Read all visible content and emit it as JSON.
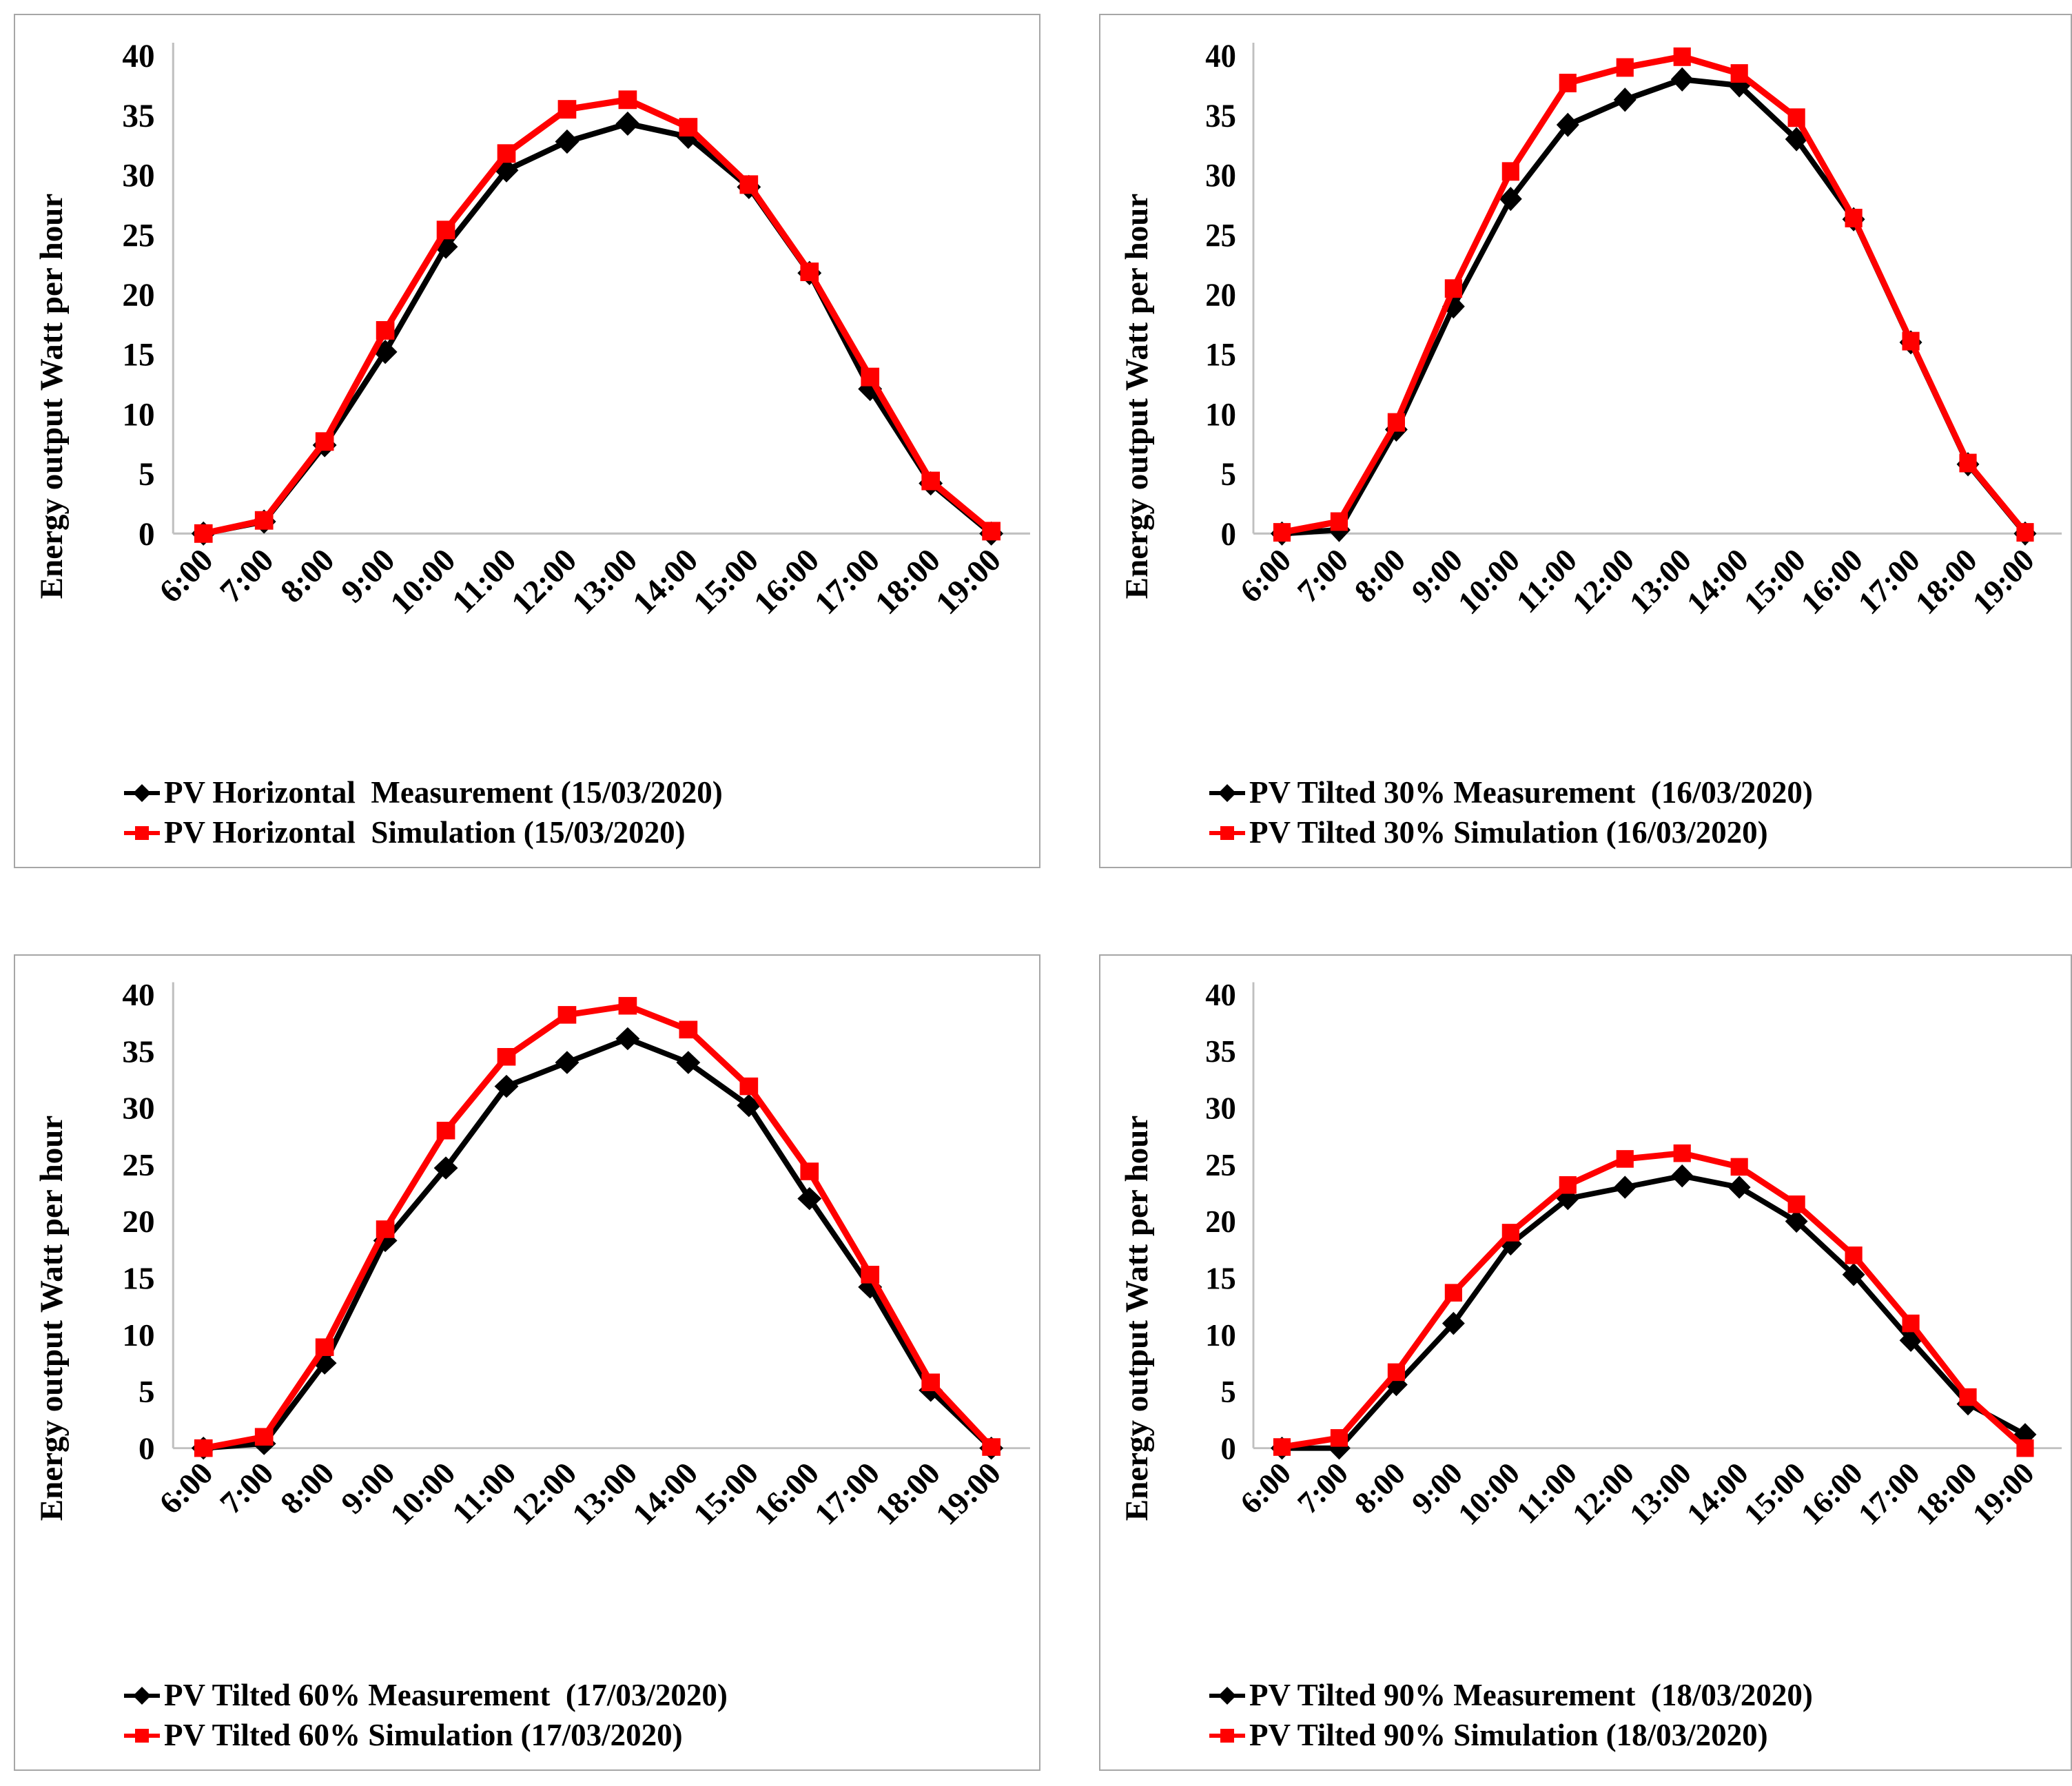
{
  "page": {
    "background": "#ffffff"
  },
  "colors": {
    "measurement": "#000000",
    "simulation": "#ff0000",
    "axis": "#c0c0c0",
    "panel_border": "#a6a6a6"
  },
  "chart_data": [
    {
      "type": "line",
      "ylabel": "Energy output Watt per hour",
      "xlabel": "",
      "ylim": [
        0,
        40
      ],
      "yticks": [
        0,
        5,
        10,
        15,
        20,
        25,
        30,
        35,
        40
      ],
      "grid": false,
      "legend_position": "bottom",
      "categories": [
        "6:00",
        "7:00",
        "8:00",
        "9:00",
        "10:00",
        "11:00",
        "12:00",
        "13:00",
        "14:00",
        "15:00",
        "16:00",
        "17:00",
        "18:00",
        "19:00"
      ],
      "series": [
        {
          "name": "PV Horizontal  Measurement (15/03/2020)",
          "marker": "diamond",
          "color": "#000000",
          "values": [
            0,
            1.0,
            7.4,
            15.2,
            24.0,
            30.4,
            32.8,
            34.3,
            33.2,
            29.0,
            21.8,
            12.1,
            4.2,
            0
          ]
        },
        {
          "name": "PV Horizontal  Simulation (15/03/2020)",
          "marker": "square",
          "color": "#ff0000",
          "values": [
            0,
            1.1,
            7.7,
            17.0,
            25.4,
            31.8,
            35.5,
            36.3,
            34.0,
            29.2,
            21.9,
            13.1,
            4.4,
            0.2
          ]
        }
      ]
    },
    {
      "type": "line",
      "ylabel": "Energy output Watt per hour",
      "xlabel": "",
      "ylim": [
        0,
        40
      ],
      "yticks": [
        0,
        5,
        10,
        15,
        20,
        25,
        30,
        35,
        40
      ],
      "grid": false,
      "legend_position": "bottom",
      "categories": [
        "6:00",
        "7:00",
        "8:00",
        "9:00",
        "10:00",
        "11:00",
        "12:00",
        "13:00",
        "14:00",
        "15:00",
        "16:00",
        "17:00",
        "18:00",
        "19:00"
      ],
      "series": [
        {
          "name": "PV Tilted 30% Measurement  (16/03/2020)",
          "marker": "diamond",
          "color": "#000000",
          "values": [
            0,
            0.3,
            8.7,
            19.0,
            28.0,
            34.2,
            36.3,
            38.0,
            37.5,
            33.0,
            26.3,
            16.0,
            5.8,
            0
          ]
        },
        {
          "name": "PV Tilted 30% Simulation (16/03/2020)",
          "marker": "square",
          "color": "#ff0000",
          "values": [
            0.1,
            1.0,
            9.3,
            20.5,
            30.3,
            37.7,
            39.0,
            39.9,
            38.5,
            34.8,
            26.4,
            16.1,
            5.9,
            0.1
          ]
        }
      ]
    },
    {
      "type": "line",
      "ylabel": "Energy output Watt per hour",
      "xlabel": "",
      "ylim": [
        0,
        40
      ],
      "yticks": [
        0,
        5,
        10,
        15,
        20,
        25,
        30,
        35,
        40
      ],
      "grid": false,
      "legend_position": "bottom",
      "categories": [
        "6:00",
        "7:00",
        "8:00",
        "9:00",
        "10:00",
        "11:00",
        "12:00",
        "13:00",
        "14:00",
        "15:00",
        "16:00",
        "17:00",
        "18:00",
        "19:00"
      ],
      "series": [
        {
          "name": "PV Tilted 60% Measurement  (17/03/2020)",
          "marker": "diamond",
          "color": "#000000",
          "values": [
            0,
            0.4,
            7.5,
            18.3,
            24.7,
            31.9,
            34.0,
            36.1,
            34.0,
            30.2,
            22.0,
            14.2,
            5.1,
            0
          ]
        },
        {
          "name": "PV Tilted 60% Simulation (17/03/2020)",
          "marker": "square",
          "color": "#ff0000",
          "values": [
            0,
            1.0,
            8.9,
            19.3,
            28.0,
            34.5,
            38.2,
            39.0,
            36.9,
            31.9,
            24.4,
            15.3,
            5.8,
            0.1
          ]
        }
      ]
    },
    {
      "type": "line",
      "ylabel": "Energy output Watt per hour",
      "xlabel": "",
      "ylim": [
        0,
        40
      ],
      "yticks": [
        0,
        5,
        10,
        15,
        20,
        25,
        30,
        35,
        40
      ],
      "grid": false,
      "legend_position": "bottom",
      "categories": [
        "6:00",
        "7:00",
        "8:00",
        "9:00",
        "10:00",
        "11:00",
        "12:00",
        "13:00",
        "14:00",
        "15:00",
        "16:00",
        "17:00",
        "18:00",
        "19:00"
      ],
      "series": [
        {
          "name": "PV Tilted 90% Measurement  (18/03/2020)",
          "marker": "diamond",
          "color": "#000000",
          "values": [
            0,
            0,
            5.6,
            11.0,
            18.0,
            22.0,
            23.0,
            24.0,
            23.0,
            20.0,
            15.3,
            9.5,
            3.9,
            1.2
          ]
        },
        {
          "name": "PV Tilted 90% Simulation (18/03/2020)",
          "marker": "square",
          "color": "#ff0000",
          "values": [
            0.1,
            0.9,
            6.7,
            13.7,
            19.0,
            23.2,
            25.5,
            26.0,
            24.8,
            21.5,
            17.0,
            11.0,
            4.5,
            0
          ]
        }
      ]
    }
  ]
}
